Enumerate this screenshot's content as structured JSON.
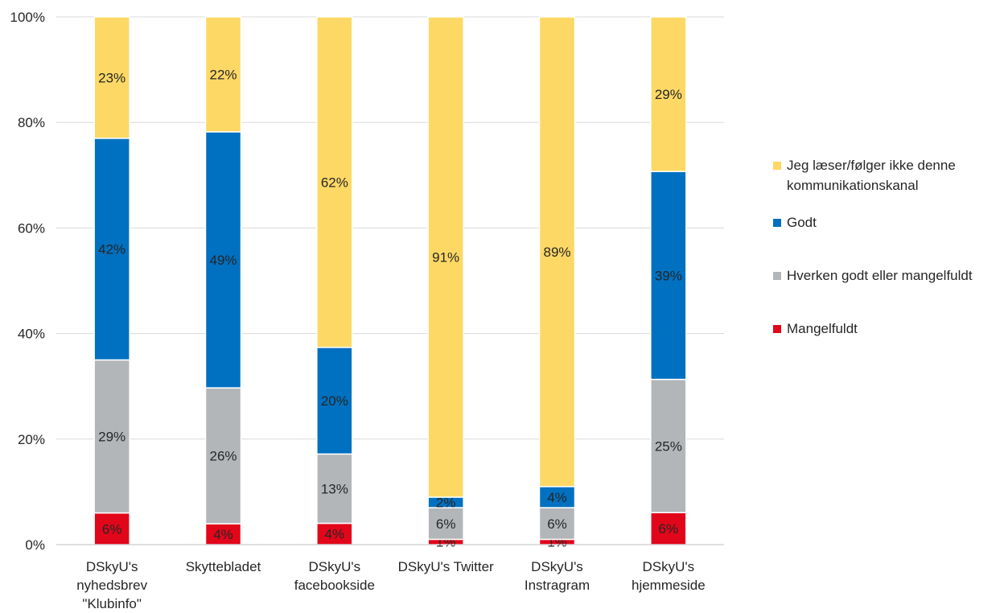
{
  "chart_data": {
    "type": "bar",
    "stacked": "percent",
    "categories": [
      [
        "DSkyU's",
        "nyhedsbrev",
        "\"Klubinfo\""
      ],
      [
        "Skyttebladet"
      ],
      [
        "DSkyU's",
        "facebookside"
      ],
      [
        "DSkyU's Twitter"
      ],
      [
        "DSkyU's",
        "Instragram"
      ],
      [
        "DSkyU's",
        "hjemmeside"
      ]
    ],
    "series": [
      {
        "name": "Mangelfuldt",
        "color": "#e2061a",
        "values": [
          6,
          4,
          4,
          1,
          1,
          6
        ],
        "labels": [
          "6%",
          "4%",
          "4%",
          "1%",
          "1%",
          "6%"
        ]
      },
      {
        "name": "Hverken godt eller mangelfuldt",
        "color": "#b3b6b9",
        "values": [
          29,
          26,
          13,
          6,
          6,
          25
        ],
        "labels": [
          "29%",
          "26%",
          "13%",
          "6%",
          "6%",
          "25%"
        ]
      },
      {
        "name": "Godt",
        "color": "#0070c0",
        "values": [
          42,
          49,
          20,
          2,
          4,
          39
        ],
        "labels": [
          "42%",
          "49%",
          "20%",
          "2%",
          "4%",
          "39%"
        ]
      },
      {
        "name": "Jeg læser/følger ikke denne kommunikationskanal",
        "legend_lines": [
          "Jeg læser/følger ikke denne",
          "kommunikationskanal"
        ],
        "color": "#fdd865",
        "values": [
          23,
          22,
          62,
          91,
          89,
          29
        ],
        "labels": [
          "23%",
          "22%",
          "62%",
          "91%",
          "89%",
          "29%"
        ]
      }
    ],
    "ylim": [
      0,
      100
    ],
    "yticks": [
      0,
      20,
      40,
      60,
      80,
      100
    ],
    "ytick_labels": [
      "0%",
      "20%",
      "40%",
      "60%",
      "80%",
      "100%"
    ],
    "grid": true,
    "legend": {
      "position": "right",
      "order": [
        "Jeg læser/følger ikke denne kommunikationskanal",
        "Godt",
        "Hverken godt eller mangelfuldt",
        "Mangelfuldt"
      ]
    },
    "title": "",
    "xlabel": "",
    "ylabel": ""
  }
}
